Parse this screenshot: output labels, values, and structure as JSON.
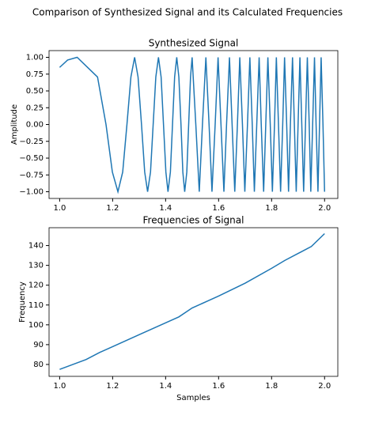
{
  "title": "Comparison of Synthesized Signal and its Calculated Frequencies",
  "chart_data": [
    {
      "type": "line",
      "title": "Synthesized Signal",
      "ylabel": "Amplitude",
      "color": "#1f77b4",
      "x": [
        1.0,
        1.03,
        1.066,
        1.143,
        1.175,
        1.199,
        1.22,
        1.238,
        1.254,
        1.269,
        1.283,
        1.296,
        1.309,
        1.321,
        1.332,
        1.343,
        1.353,
        1.363,
        1.373,
        1.383,
        1.392,
        1.401,
        1.409,
        1.418,
        1.426,
        1.434,
        1.442,
        1.45,
        1.458,
        1.465,
        1.472,
        1.48,
        1.487,
        1.494,
        1.5,
        1.514,
        1.527,
        1.539,
        1.552,
        1.564,
        1.575,
        1.587,
        1.598,
        1.609,
        1.62,
        1.63,
        1.641,
        1.651,
        1.661,
        1.671,
        1.68,
        1.69,
        1.699,
        1.709,
        1.718,
        1.727,
        1.735,
        1.744,
        1.753,
        1.761,
        1.77,
        1.778,
        1.786,
        1.795,
        1.803,
        1.811,
        1.818,
        1.826,
        1.834,
        1.842,
        1.849,
        1.857,
        1.864,
        1.871,
        1.879,
        1.886,
        1.893,
        1.9,
        1.907,
        1.914,
        1.921,
        1.928,
        1.935,
        1.942,
        1.948,
        1.955,
        1.962,
        1.968,
        1.975,
        1.981,
        1.987,
        1.994,
        2.0
      ],
      "values": [
        0.85,
        0.96,
        1,
        0.707,
        0,
        -0.707,
        -1,
        -0.707,
        0,
        0.707,
        1,
        0.707,
        0,
        -0.707,
        -1,
        -0.707,
        0,
        0.707,
        1,
        0.707,
        0,
        -0.707,
        -1,
        -0.707,
        0,
        0.707,
        1,
        0.707,
        0,
        -0.707,
        -1,
        -0.707,
        0,
        0.707,
        1,
        0,
        -1,
        0,
        1,
        0,
        -1,
        0,
        1,
        0,
        -1,
        0,
        1,
        0,
        -1,
        0,
        1,
        0,
        -1,
        0,
        1,
        0,
        -1,
        0,
        1,
        0,
        -1,
        0,
        1,
        0,
        -1,
        0,
        1,
        0,
        -1,
        0,
        1,
        0,
        -1,
        0,
        1,
        0,
        -1,
        0,
        1,
        0,
        -1,
        0,
        1,
        0,
        -1,
        0,
        1,
        0,
        -1,
        0,
        1,
        0,
        -1
      ],
      "xlim": [
        0.96,
        2.05
      ],
      "ylim": [
        -1.1,
        1.1
      ],
      "xticks": [
        {
          "value": 1.0,
          "label": "1.0"
        },
        {
          "value": 1.2,
          "label": "1.2"
        },
        {
          "value": 1.4,
          "label": "1.4"
        },
        {
          "value": 1.6,
          "label": "1.6"
        },
        {
          "value": 1.8,
          "label": "1.8"
        },
        {
          "value": 2.0,
          "label": "2.0"
        }
      ],
      "yticks": [
        {
          "value": -1,
          "label": "−1.00"
        },
        {
          "value": -0.75,
          "label": "−0.75"
        },
        {
          "value": -0.5,
          "label": "−0.50"
        },
        {
          "value": -0.25,
          "label": "−0.25"
        },
        {
          "value": 0,
          "label": "0.00"
        },
        {
          "value": 0.25,
          "label": "0.25"
        },
        {
          "value": 0.5,
          "label": "0.50"
        },
        {
          "value": 0.75,
          "label": "0.75"
        },
        {
          "value": 1,
          "label": "1.00"
        }
      ]
    },
    {
      "type": "line",
      "title": "Frequencies of Signal",
      "xlabel": "Samples",
      "ylabel": "Frequency",
      "color": "#1f77b4",
      "x": [
        1.0,
        1.05,
        1.1,
        1.15,
        1.2,
        1.3,
        1.4,
        1.45,
        1.5,
        1.6,
        1.7,
        1.8,
        1.85,
        1.9,
        1.95,
        2.0
      ],
      "values": [
        77.5,
        80,
        82.5,
        86,
        89,
        95,
        101,
        104,
        108.5,
        114.5,
        121,
        128.5,
        132.5,
        136,
        139.5,
        146
      ],
      "xlim": [
        0.96,
        2.05
      ],
      "ylim": [
        74,
        149
      ],
      "xticks": [
        {
          "value": 1.0,
          "label": "1.0"
        },
        {
          "value": 1.2,
          "label": "1.2"
        },
        {
          "value": 1.4,
          "label": "1.4"
        },
        {
          "value": 1.6,
          "label": "1.6"
        },
        {
          "value": 1.8,
          "label": "1.8"
        },
        {
          "value": 2.0,
          "label": "2.0"
        }
      ],
      "yticks": [
        80,
        90,
        100,
        110,
        120,
        130,
        140
      ]
    }
  ]
}
